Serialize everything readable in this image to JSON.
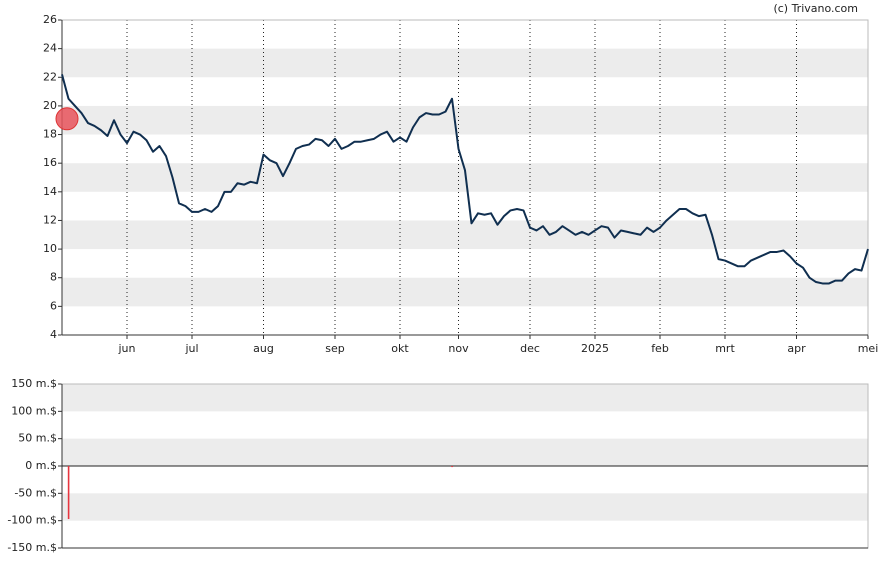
{
  "chart_data": [
    {
      "type": "line",
      "credit": "(c) Trivano.com",
      "color": "#102f50",
      "categories": [
        null,
        null,
        null,
        null,
        null,
        null,
        null,
        null,
        null,
        null,
        "jun",
        null,
        null,
        null,
        null,
        null,
        null,
        null,
        null,
        null,
        "jul",
        null,
        null,
        null,
        null,
        null,
        null,
        null,
        null,
        null,
        null,
        "aug",
        null,
        null,
        null,
        null,
        null,
        null,
        null,
        null,
        null,
        null,
        "sep",
        null,
        null,
        null,
        null,
        null,
        null,
        null,
        null,
        null,
        "okt",
        null,
        null,
        null,
        null,
        null,
        null,
        null,
        null,
        "nov",
        null,
        null,
        null,
        null,
        null,
        null,
        null,
        null,
        null,
        null,
        "dec",
        null,
        null,
        null,
        null,
        null,
        null,
        null,
        null,
        null,
        "2025",
        null,
        null,
        null,
        null,
        null,
        null,
        null,
        null,
        null,
        "feb",
        null,
        null,
        null,
        null,
        null,
        null,
        null,
        null,
        null,
        "mrt",
        null,
        null,
        null,
        null,
        null,
        null,
        null,
        null,
        null,
        null,
        "apr",
        null,
        null,
        null,
        null,
        null,
        null,
        null,
        null,
        null,
        null,
        "mei"
      ],
      "values": [
        22.2,
        20.5,
        20.0,
        19.5,
        18.8,
        18.6,
        18.3,
        17.9,
        19.0,
        18.0,
        17.4,
        18.2,
        18.0,
        17.6,
        16.8,
        17.2,
        16.5,
        15.0,
        13.2,
        13.0,
        12.6,
        12.6,
        12.8,
        12.6,
        13.0,
        14.0,
        14.0,
        14.6,
        14.5,
        14.7,
        14.6,
        16.6,
        16.2,
        16.0,
        15.1,
        16.0,
        17.0,
        17.2,
        17.3,
        17.7,
        17.6,
        17.2,
        17.7,
        17.0,
        17.2,
        17.5,
        17.5,
        17.6,
        17.7,
        18.0,
        18.2,
        17.5,
        17.8,
        17.5,
        18.5,
        19.2,
        19.5,
        19.4,
        19.4,
        19.6,
        20.5,
        17.0,
        15.5,
        11.8,
        12.5,
        12.4,
        12.5,
        11.7,
        12.3,
        12.7,
        12.8,
        12.7,
        11.5,
        11.3,
        11.6,
        11.0,
        11.2,
        11.6,
        11.3,
        11.0,
        11.2,
        11.0,
        11.3,
        11.6,
        11.5,
        10.8,
        11.3,
        11.2,
        11.1,
        11.0,
        11.5,
        11.2,
        11.5,
        12.0,
        12.4,
        12.8,
        12.8,
        12.5,
        12.3,
        12.4,
        11.0,
        9.3,
        9.2,
        9.0,
        8.8,
        8.8,
        9.2,
        9.4,
        9.6,
        9.8,
        9.8,
        9.9,
        9.5,
        9.0,
        8.7,
        8.0,
        7.7,
        7.6,
        7.6,
        7.8,
        7.8,
        8.3,
        8.6,
        8.5,
        10.0
      ],
      "marker": {
        "value": 19.1,
        "color": "#e8535c"
      },
      "ylim": [
        4,
        26
      ],
      "yticks": [
        4,
        6,
        8,
        10,
        12,
        14,
        16,
        18,
        20,
        22,
        24,
        26
      ],
      "grid": true
    },
    {
      "type": "bar",
      "color": "#e8353f",
      "values": [
        null,
        -97,
        null,
        null,
        null,
        null,
        null,
        null,
        null,
        null,
        null,
        null,
        null,
        null,
        null,
        null,
        null,
        null,
        null,
        null,
        null,
        null,
        null,
        null,
        null,
        null,
        null,
        null,
        null,
        null,
        null,
        null,
        null,
        null,
        null,
        null,
        null,
        null,
        null,
        null,
        null,
        null,
        null,
        null,
        null,
        null,
        null,
        null,
        null,
        null,
        null,
        null,
        null,
        null,
        null,
        null,
        null,
        null,
        null,
        null,
        -2,
        null,
        null,
        null,
        null,
        null,
        null,
        null,
        null,
        null,
        null,
        null,
        null,
        null,
        null,
        null,
        null,
        null,
        null,
        null,
        null,
        null,
        null,
        null,
        null,
        null,
        null,
        null,
        null,
        null,
        null,
        null,
        null,
        null,
        null,
        null,
        null,
        null,
        null,
        null,
        null,
        null,
        null,
        null,
        null,
        null,
        null,
        null,
        null,
        null,
        null,
        null,
        null,
        null,
        null,
        null,
        null,
        null,
        null,
        null,
        null,
        null,
        null,
        null,
        null
      ],
      "ylim": [
        -150,
        150
      ],
      "yticks": [
        {
          "value": -150,
          "label": "-150 m.$"
        },
        {
          "value": -100,
          "label": "-100 m.$"
        },
        {
          "value": -50,
          "label": "-50 m.$"
        },
        {
          "value": 0,
          "label": "0 m.$"
        },
        {
          "value": 50,
          "label": "50 m.$"
        },
        {
          "value": 100,
          "label": "100 m.$"
        },
        {
          "value": 150,
          "label": "150 m.$"
        }
      ],
      "grid": true
    }
  ]
}
